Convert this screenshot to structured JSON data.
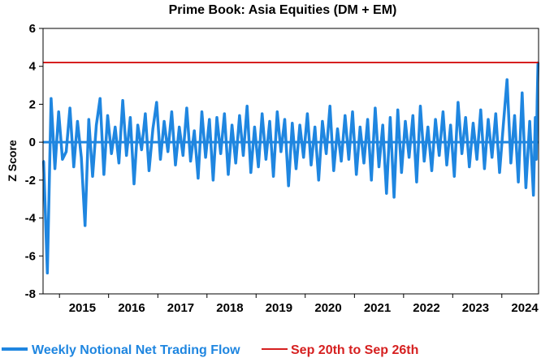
{
  "chart_data": {
    "type": "line",
    "title": "Prime Book: Asia Equities (DM + EM)",
    "ylabel": "Z Score",
    "xlabel": "",
    "ylim": [
      -8,
      6
    ],
    "yticks": [
      -8,
      -6,
      -4,
      -2,
      0,
      2,
      4,
      6
    ],
    "xlim": [
      "2014-09-01",
      "2024-09-30"
    ],
    "xticks": [
      "2015",
      "2016",
      "2017",
      "2018",
      "2019",
      "2020",
      "2021",
      "2022",
      "2023",
      "2024"
    ],
    "grid": false,
    "legend_position": "bottom",
    "series": [
      {
        "name": "Weekly Notional Net Trading Flow",
        "color": "#1f86e0",
        "x": [
          "2014-09-05",
          "2014-10-03",
          "2014-10-31",
          "2014-11-28",
          "2014-12-26",
          "2015-01-23",
          "2015-02-20",
          "2015-03-20",
          "2015-04-17",
          "2015-05-15",
          "2015-06-12",
          "2015-07-10",
          "2015-08-07",
          "2015-09-04",
          "2015-10-02",
          "2015-10-30",
          "2015-11-27",
          "2015-12-25",
          "2016-01-22",
          "2016-02-19",
          "2016-03-18",
          "2016-04-15",
          "2016-05-13",
          "2016-06-10",
          "2016-07-08",
          "2016-08-05",
          "2016-09-02",
          "2016-09-30",
          "2016-10-28",
          "2016-11-25",
          "2016-12-23",
          "2017-01-20",
          "2017-02-17",
          "2017-03-17",
          "2017-04-14",
          "2017-05-12",
          "2017-06-09",
          "2017-07-07",
          "2017-08-04",
          "2017-09-01",
          "2017-09-29",
          "2017-10-27",
          "2017-11-24",
          "2017-12-22",
          "2018-01-19",
          "2018-02-16",
          "2018-03-16",
          "2018-04-13",
          "2018-05-11",
          "2018-06-08",
          "2018-07-06",
          "2018-08-03",
          "2018-08-31",
          "2018-09-28",
          "2018-10-26",
          "2018-11-23",
          "2018-12-21",
          "2019-01-18",
          "2019-02-15",
          "2019-03-15",
          "2019-04-12",
          "2019-05-10",
          "2019-06-07",
          "2019-07-05",
          "2019-08-02",
          "2019-08-30",
          "2019-09-27",
          "2019-10-25",
          "2019-11-22",
          "2019-12-20",
          "2020-01-17",
          "2020-02-14",
          "2020-03-13",
          "2020-04-10",
          "2020-05-08",
          "2020-06-05",
          "2020-07-03",
          "2020-07-31",
          "2020-08-28",
          "2020-09-25",
          "2020-10-23",
          "2020-11-20",
          "2020-12-18",
          "2021-01-15",
          "2021-02-12",
          "2021-03-12",
          "2021-04-09",
          "2021-05-07",
          "2021-06-04",
          "2021-07-02",
          "2021-07-30",
          "2021-08-27",
          "2021-09-24",
          "2021-10-22",
          "2021-11-19",
          "2021-12-17",
          "2022-01-14",
          "2022-02-11",
          "2022-03-11",
          "2022-04-08",
          "2022-05-06",
          "2022-06-03",
          "2022-07-01",
          "2022-07-29",
          "2022-08-26",
          "2022-09-23",
          "2022-10-21",
          "2022-11-18",
          "2022-12-16",
          "2023-01-13",
          "2023-02-10",
          "2023-03-10",
          "2023-04-07",
          "2023-05-05",
          "2023-06-02",
          "2023-06-30",
          "2023-07-28",
          "2023-08-25",
          "2023-09-22",
          "2023-10-20",
          "2023-11-17",
          "2023-12-15",
          "2024-01-12",
          "2024-02-09",
          "2024-03-08",
          "2024-04-05",
          "2024-05-03",
          "2024-05-31",
          "2024-06-28",
          "2024-07-26",
          "2024-08-23",
          "2024-09-06",
          "2024-09-13",
          "2024-09-20",
          "2024-09-26"
        ],
        "values": [
          -1.0,
          -6.9,
          2.3,
          -1.4,
          1.6,
          -0.9,
          -0.5,
          1.8,
          -1.3,
          1.1,
          -0.8,
          -4.4,
          1.2,
          -1.8,
          0.9,
          2.3,
          -1.7,
          1.4,
          -0.6,
          0.8,
          -1.1,
          2.2,
          -0.7,
          1.3,
          -2.2,
          0.9,
          -0.4,
          1.5,
          -1.5,
          0.7,
          2.1,
          -0.9,
          1.1,
          -0.5,
          1.6,
          -1.2,
          0.8,
          -0.7,
          1.8,
          -1.0,
          0.6,
          -1.9,
          1.6,
          -0.8,
          1.2,
          -2.0,
          1.3,
          -0.6,
          1.5,
          -1.7,
          0.9,
          -1.1,
          1.4,
          -0.7,
          1.9,
          -1.6,
          0.8,
          -1.3,
          1.5,
          -0.9,
          1.1,
          -1.8,
          1.6,
          -0.5,
          1.2,
          -2.3,
          1.0,
          -1.4,
          0.9,
          -0.8,
          1.5,
          -1.2,
          0.8,
          -2.0,
          1.1,
          -0.6,
          1.9,
          -1.5,
          0.7,
          -1.0,
          1.4,
          -0.9,
          1.6,
          -1.7,
          0.8,
          -1.1,
          1.2,
          -2.0,
          1.8,
          -1.3,
          0.9,
          -2.7,
          1.3,
          -2.9,
          1.7,
          -1.6,
          1.1,
          -0.8,
          1.4,
          -2.1,
          1.9,
          -1.0,
          0.8,
          -1.5,
          1.2,
          -0.7,
          1.6,
          -1.2,
          0.9,
          -1.8,
          2.1,
          -0.6,
          1.3,
          -1.3,
          1.0,
          -0.9,
          1.7,
          -1.4,
          1.2,
          -0.8,
          1.5,
          -1.6,
          0.9,
          3.3,
          -1.1,
          1.4,
          -2.1,
          2.6,
          -2.4,
          1.1,
          -2.8,
          1.3,
          -0.9,
          2.2,
          4.2
        ]
      },
      {
        "name": "Sep 20th to Sep 26th",
        "color": "#d62020",
        "kind": "hline",
        "value": 4.2
      }
    ]
  }
}
